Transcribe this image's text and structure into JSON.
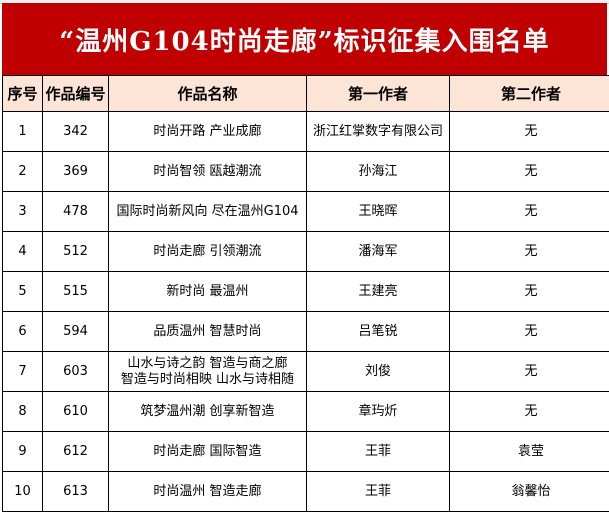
{
  "title": "“温州G104时尚走廊”标识征集入围名单",
  "colors": {
    "title_bg": "#c00000",
    "header_bg": "#fce4d6"
  },
  "headers": [
    "序号",
    "作品编号",
    "作品名称",
    "第一作者",
    "第二作者"
  ],
  "rows": [
    {
      "no": "1",
      "id": "342",
      "name": "时尚开路 产业成廊",
      "author1": "浙江红掌数字有限公司",
      "author2": "无"
    },
    {
      "no": "2",
      "id": "369",
      "name": "时尚智领 瓯越潮流",
      "author1": "孙海江",
      "author2": "无"
    },
    {
      "no": "3",
      "id": "478",
      "name": "国际时尚新风向 尽在温州G104",
      "author1": "王晓晖",
      "author2": "无"
    },
    {
      "no": "4",
      "id": "512",
      "name": "时尚走廊 引领潮流",
      "author1": "潘海军",
      "author2": "无"
    },
    {
      "no": "5",
      "id": "515",
      "name": "新时尚 最温州",
      "author1": "王建亮",
      "author2": "无"
    },
    {
      "no": "6",
      "id": "594",
      "name": "品质温州 智慧时尚",
      "author1": "吕笔锐",
      "author2": "无"
    },
    {
      "no": "7",
      "id": "603",
      "name": "山水与诗之韵 智造与商之廊",
      "name2": "智造与时尚相映 山水与诗相随",
      "author1": "刘俊",
      "author2": "无"
    },
    {
      "no": "8",
      "id": "610",
      "name": "筑梦温州潮 创享新智造",
      "author1": "章玙炘",
      "author2": "无"
    },
    {
      "no": "9",
      "id": "612",
      "name": "时尚走廊 国际智造",
      "author1": "王菲",
      "author2": "袁莹"
    },
    {
      "no": "10",
      "id": "613",
      "name": "时尚温州 智造走廊",
      "author1": "王菲",
      "author2": "翁馨怡"
    }
  ]
}
